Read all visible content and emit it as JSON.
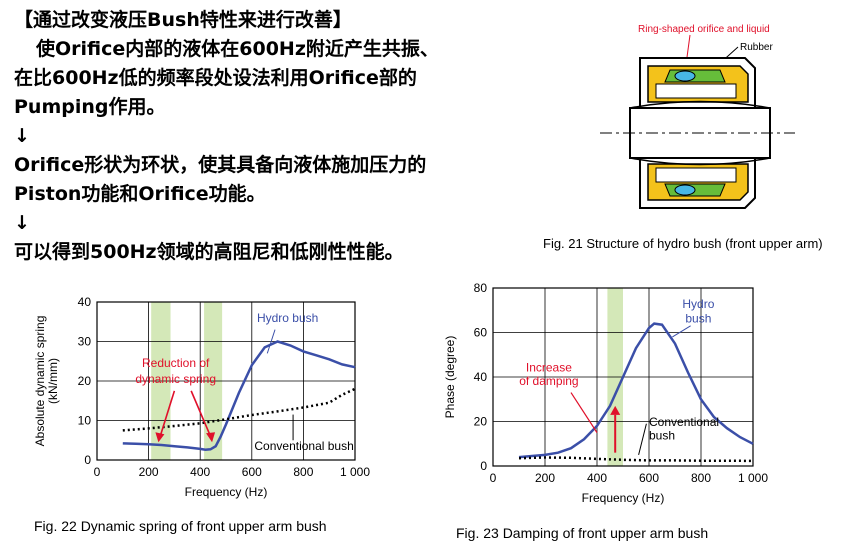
{
  "text": {
    "lines": [
      "【通过改变液压Bush特性来进行改善】",
      "使Orifice内部的液体在600Hz附近产生共振、",
      "在比600Hz低的频率段处设法利用Orifice部的",
      "Pumping作用。",
      "↓",
      "Orifice形状为环状，使其具备向液体施加压力的",
      "Piston功能和Orifice功能。",
      "↓",
      "可以得到500Hz领域的高阻尼和低刚性性能。"
    ]
  },
  "fig21": {
    "label_orifice": "Ring-shaped orifice and liquid",
    "label_rubber": "Rubber",
    "caption": "Fig. 21    Structure of hydro bush (front upper arm)"
  },
  "fig22": {
    "caption": "Fig. 22    Dynamic spring of front upper arm bush",
    "annotation": [
      "Reduction of",
      "dynamic spring"
    ]
  },
  "fig23": {
    "caption": "Fig. 23    Damping of front upper arm bush",
    "annotation": [
      "Increase",
      "of damping"
    ]
  },
  "colors": {
    "hydro": "#3b4fa8",
    "annotation_red": "#e0102a",
    "highlight": "#d4e8b8",
    "conventional": "#000000"
  },
  "chart_data": [
    {
      "type": "line",
      "ylabel": "Absolute dynamic spring (kN/mm)",
      "ylabel_lines": [
        "Absolute dynamic spring",
        "(kN/mm)"
      ],
      "xlabel": "Frequency (Hz)",
      "xlim": [
        0,
        1000
      ],
      "ylim": [
        0,
        40
      ],
      "xticks": [
        0,
        200,
        400,
        600,
        800,
        1000
      ],
      "xtick_labels": [
        "0",
        "200",
        "400",
        "600",
        "800",
        "1 000"
      ],
      "yticks": [
        0,
        10,
        20,
        30,
        40
      ],
      "grid": true,
      "highlight_bands": [
        [
          210,
          285
        ],
        [
          415,
          485
        ]
      ],
      "series": [
        {
          "name": "Hydro bush",
          "style": "solid",
          "x": [
            100,
            150,
            200,
            250,
            300,
            350,
            400,
            420,
            440,
            460,
            480,
            500,
            550,
            600,
            650,
            700,
            750,
            800,
            850,
            900,
            950,
            1000
          ],
          "y": [
            4.2,
            4.1,
            4.0,
            3.8,
            3.5,
            3.2,
            2.8,
            2.6,
            2.7,
            3.5,
            6,
            9,
            17,
            24,
            28.5,
            30,
            29,
            27.5,
            26.5,
            25.5,
            24.2,
            23.5
          ]
        },
        {
          "name": "Conventional bush",
          "style": "dotted",
          "x": [
            100,
            200,
            300,
            400,
            500,
            600,
            700,
            800,
            900,
            950,
            1000
          ],
          "y": [
            7.5,
            8.0,
            8.6,
            9.3,
            10.3,
            11.4,
            12.3,
            13.3,
            14.5,
            16.5,
            18
          ]
        }
      ]
    },
    {
      "type": "line",
      "ylabel": "Phase (degree)",
      "xlabel": "Frequency (Hz)",
      "xlim": [
        0,
        1000
      ],
      "ylim": [
        0,
        80
      ],
      "xticks": [
        0,
        200,
        400,
        600,
        800,
        1000
      ],
      "xtick_labels": [
        "0",
        "200",
        "400",
        "600",
        "800",
        "1 000"
      ],
      "yticks": [
        0,
        20,
        40,
        60,
        80
      ],
      "grid": true,
      "highlight_bands": [
        [
          440,
          500
        ]
      ],
      "series": [
        {
          "name": "Hydro bush",
          "style": "solid",
          "x": [
            100,
            150,
            200,
            250,
            300,
            350,
            400,
            450,
            500,
            550,
            600,
            620,
            650,
            700,
            750,
            800,
            850,
            900,
            950,
            1000
          ],
          "y": [
            4,
            4.5,
            5,
            6,
            8,
            12,
            18,
            27,
            40,
            53,
            62,
            64,
            63.5,
            55,
            42,
            30,
            22,
            17,
            13,
            10
          ]
        },
        {
          "name": "Conventional bush",
          "style": "dotted",
          "x": [
            100,
            200,
            300,
            400,
            500,
            600,
            700,
            800,
            900,
            1000
          ],
          "y": [
            3.5,
            3.8,
            3.7,
            3.2,
            2.8,
            2.5,
            2.5,
            2.4,
            2.4,
            2.3
          ]
        }
      ]
    }
  ]
}
